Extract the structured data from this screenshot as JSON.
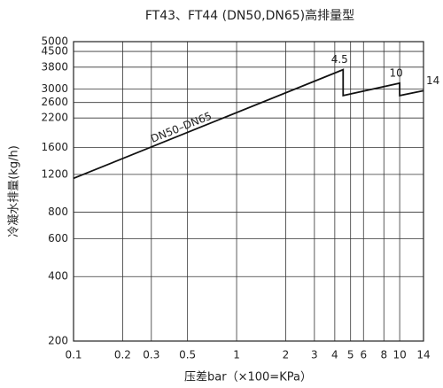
{
  "chart_data": {
    "type": "line",
    "title": "FT43、FT44 (DN50,DN65)高排量型",
    "x_label": "压差bar（×100=KPa）",
    "y_label": "冷凝水排量(kg/h)",
    "x_log": true,
    "y_log": true,
    "grid": true,
    "xlim": [
      0.1,
      14
    ],
    "ylim": [
      200,
      5000
    ],
    "xticks": [
      0.1,
      0.2,
      0.3,
      0.5,
      1,
      2,
      3,
      4,
      5,
      6,
      8,
      10,
      14
    ],
    "yticks": [
      200,
      400,
      600,
      800,
      1200,
      1600,
      2200,
      2600,
      3000,
      3800,
      4500,
      5000
    ],
    "series": [
      {
        "name": "DN50–DN65",
        "color": "#111111",
        "x": [
          0.1,
          4.5,
          4.5,
          10,
          10,
          14
        ],
        "values": [
          1150,
          3700,
          2800,
          3200,
          2800,
          2950
        ]
      }
    ],
    "annotations": [
      "4.5",
      "10",
      "14"
    ]
  }
}
